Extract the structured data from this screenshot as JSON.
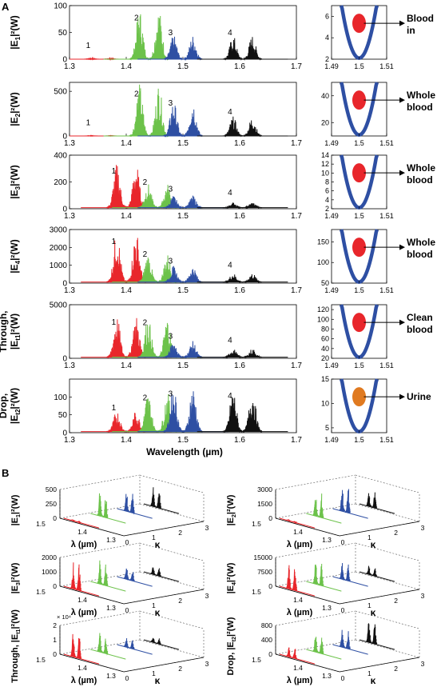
{
  "figure": {
    "panel_a_label": "A",
    "panel_b_label": "B",
    "x_axis_label": "Wavelength (µm)"
  },
  "chart_data": [
    {
      "type": "line",
      "panel": "A",
      "row": 1,
      "ylabel_main": "|E",
      "ylabel_sub": "1",
      "ylabel_rest": "|²(W)",
      "xlim": [
        1.3,
        1.7
      ],
      "ylim": [
        0,
        100
      ],
      "xticks": [
        "1.3",
        "1.4",
        "1.5",
        "1.6",
        "1.7"
      ],
      "yticks": [
        "0",
        "50",
        "100"
      ],
      "peaks": [
        {
          "label": "1",
          "color": "#e8262b",
          "center": 1.355,
          "amp": 2
        },
        {
          "label": "2",
          "color": "#6cc24a",
          "center": 1.44,
          "amp": 95
        },
        {
          "label": "3",
          "color": "#2e4fa3",
          "center": 1.5,
          "amp": 45
        },
        {
          "label": "4",
          "color": "#111111",
          "center": 1.605,
          "amp": 45
        }
      ],
      "inset": {
        "xlim": [
          1.49,
          1.51
        ],
        "ylim": [
          2,
          7
        ],
        "xticks": [
          "1.49",
          "1.5",
          "1.51"
        ],
        "yticks": [
          "2",
          "4",
          "6"
        ],
        "marker_color": "#e8262b",
        "annotation": "Blood in"
      }
    },
    {
      "type": "line",
      "panel": "A",
      "row": 2,
      "ylabel_main": "|E",
      "ylabel_sub": "2",
      "ylabel_rest": "|²(W)",
      "xlim": [
        1.3,
        1.7
      ],
      "ylim": [
        0,
        600
      ],
      "xticks": [
        "1.3",
        "1.4",
        "1.5",
        "1.6",
        "1.7"
      ],
      "yticks": [
        "0",
        "500"
      ],
      "peaks": [
        {
          "label": "1",
          "color": "#e8262b",
          "center": 1.355,
          "amp": 5
        },
        {
          "label": "2",
          "color": "#6cc24a",
          "center": 1.44,
          "amp": 590
        },
        {
          "label": "3",
          "color": "#2e4fa3",
          "center": 1.5,
          "amp": 400
        },
        {
          "label": "4",
          "color": "#111111",
          "center": 1.605,
          "amp": 220
        }
      ],
      "inset": {
        "xlim": [
          1.49,
          1.51
        ],
        "ylim": [
          10,
          50
        ],
        "xticks": [
          "1.49",
          "1.5",
          "1.51"
        ],
        "yticks": [
          "20",
          "40"
        ],
        "marker_color": "#e8262b",
        "annotation": "Whole blood"
      }
    },
    {
      "type": "line",
      "panel": "A",
      "row": 3,
      "ylabel_main": "|E",
      "ylabel_sub": "3",
      "ylabel_rest": "|²(W)",
      "xlim": [
        1.3,
        1.7
      ],
      "ylim": [
        0,
        400
      ],
      "xticks": [
        "1.3",
        "1.4",
        "1.5",
        "1.6",
        "1.7"
      ],
      "yticks": [
        "0",
        "200",
        "400"
      ],
      "peaks": [
        {
          "label": "1",
          "color": "#e8262b",
          "center": 1.4,
          "amp": 330
        },
        {
          "label": "2",
          "color": "#6cc24a",
          "center": 1.455,
          "amp": 180
        },
        {
          "label": "3",
          "color": "#2e4fa3",
          "center": 1.5,
          "amp": 90
        },
        {
          "label": "4",
          "color": "#111111",
          "center": 1.605,
          "amp": 40
        }
      ],
      "inset": {
        "xlim": [
          1.49,
          1.51
        ],
        "ylim": [
          2,
          14
        ],
        "xticks": [
          "1.49",
          "1.5",
          "1.51"
        ],
        "yticks": [
          "2",
          "4",
          "6",
          "8",
          "10",
          "12",
          "14"
        ],
        "marker_color": "#e8262b",
        "annotation": "Whole blood"
      }
    },
    {
      "type": "line",
      "panel": "A",
      "row": 4,
      "ylabel_main": "|E",
      "ylabel_sub": "4",
      "ylabel_rest": "|²(W)",
      "xlim": [
        1.3,
        1.7
      ],
      "ylim": [
        0,
        3000
      ],
      "xticks": [
        "1.3",
        "1.4",
        "1.5",
        "1.6",
        "1.7"
      ],
      "yticks": [
        "0",
        "1000",
        "2000",
        "3000"
      ],
      "peaks": [
        {
          "label": "1",
          "color": "#e8262b",
          "center": 1.4,
          "amp": 2900
        },
        {
          "label": "2",
          "color": "#6cc24a",
          "center": 1.455,
          "amp": 1600
        },
        {
          "label": "3",
          "color": "#2e4fa3",
          "center": 1.5,
          "amp": 900
        },
        {
          "label": "4",
          "color": "#111111",
          "center": 1.605,
          "amp": 500
        }
      ],
      "inset": {
        "xlim": [
          1.49,
          1.51
        ],
        "ylim": [
          50,
          180
        ],
        "xticks": [
          "1.49",
          "1.5",
          "1.51"
        ],
        "yticks": [
          "50",
          "100",
          "150"
        ],
        "marker_color": "#e8262b",
        "annotation": "Whole blood"
      }
    },
    {
      "type": "line",
      "panel": "A",
      "row": 5,
      "ylabel_top": "Through,",
      "ylabel_main": "|E",
      "ylabel_sub": "t1",
      "ylabel_rest": "|²(W)",
      "xlim": [
        1.3,
        1.7
      ],
      "ylim": [
        0,
        5000
      ],
      "xticks": [
        "1.3",
        "1.4",
        "1.5",
        "1.6",
        "1.7"
      ],
      "yticks": [
        "0",
        "5000"
      ],
      "peaks": [
        {
          "label": "1",
          "color": "#e8262b",
          "center": 1.4,
          "amp": 3900
        },
        {
          "label": "2",
          "color": "#6cc24a",
          "center": 1.455,
          "amp": 3800
        },
        {
          "label": "3",
          "color": "#2e4fa3",
          "center": 1.5,
          "amp": 1500
        },
        {
          "label": "4",
          "color": "#111111",
          "center": 1.605,
          "amp": 800
        }
      ],
      "inset": {
        "xlim": [
          1.49,
          1.51
        ],
        "ylim": [
          20,
          130
        ],
        "xticks": [
          "1.49",
          "1.5",
          "1.51"
        ],
        "yticks": [
          "20",
          "40",
          "60",
          "80",
          "100",
          "120"
        ],
        "marker_color": "#e8262b",
        "annotation": "Clean blood"
      }
    },
    {
      "type": "line",
      "panel": "A",
      "row": 6,
      "ylabel_top": "Drop,",
      "ylabel_main": "|E",
      "ylabel_sub": "t2",
      "ylabel_rest": "|²(W)",
      "xlim": [
        1.3,
        1.7
      ],
      "ylim": [
        0,
        150
      ],
      "xticks": [
        "1.3",
        "1.4",
        "1.5",
        "1.6",
        "1.7"
      ],
      "yticks": [
        "0",
        "50",
        "100"
      ],
      "peaks": [
        {
          "label": "1",
          "color": "#e8262b",
          "center": 1.4,
          "amp": 60
        },
        {
          "label": "2",
          "color": "#6cc24a",
          "center": 1.455,
          "amp": 110
        },
        {
          "label": "3",
          "color": "#2e4fa3",
          "center": 1.5,
          "amp": 130
        },
        {
          "label": "4",
          "color": "#111111",
          "center": 1.605,
          "amp": 120
        }
      ],
      "inset": {
        "xlim": [
          1.49,
          1.51
        ],
        "ylim": [
          4,
          15
        ],
        "xticks": [
          "1.49",
          "1.5",
          "1.51"
        ],
        "yticks": [
          "5",
          "10",
          "15"
        ],
        "marker_color": "#e07a20",
        "annotation": "Urine"
      }
    },
    {
      "type": "line",
      "panel": "B",
      "position": "top-left",
      "ylabel_main": "|E",
      "ylabel_sub": "1",
      "ylabel_rest": "|²(W)",
      "zticks": [
        "0",
        "250",
        "500"
      ],
      "zlim": [
        0,
        500
      ],
      "lambda_ticks": [
        "1.5",
        "1.4",
        "1.3"
      ],
      "kappa_ticks": [
        "0",
        "1",
        "2",
        "3"
      ],
      "lambda_label": "λ (µm)",
      "kappa_label": "κ",
      "exponent": "",
      "series": [
        {
          "color": "#e8262b",
          "kappa": 0,
          "amp": 0.05
        },
        {
          "color": "#6cc24a",
          "kappa": 1,
          "amp": 1.0
        },
        {
          "color": "#2e4fa3",
          "kappa": 2,
          "amp": 0.8
        },
        {
          "color": "#111111",
          "kappa": 3,
          "amp": 0.7
        }
      ]
    },
    {
      "type": "line",
      "panel": "B",
      "position": "top-right",
      "ylabel_main": "|E",
      "ylabel_sub": "2",
      "ylabel_rest": "|²(W)",
      "zticks": [
        "0",
        "1500",
        "3000"
      ],
      "zlim": [
        0,
        3000
      ],
      "lambda_ticks": [
        "1.5",
        "1.4",
        "1.3"
      ],
      "kappa_ticks": [
        "0",
        "1",
        "2",
        "3"
      ],
      "lambda_label": "λ (µm)",
      "kappa_label": "κ",
      "exponent": "",
      "series": [
        {
          "color": "#e8262b",
          "kappa": 0,
          "amp": 0.05
        },
        {
          "color": "#6cc24a",
          "kappa": 1,
          "amp": 0.9
        },
        {
          "color": "#2e4fa3",
          "kappa": 2,
          "amp": 1.0
        },
        {
          "color": "#111111",
          "kappa": 3,
          "amp": 0.6
        }
      ]
    },
    {
      "type": "line",
      "panel": "B",
      "position": "middle-left",
      "ylabel_main": "|E",
      "ylabel_sub": "3",
      "ylabel_rest": "|²(W)",
      "zticks": [
        "0",
        "1000",
        "2000"
      ],
      "zlim": [
        0,
        2000
      ],
      "lambda_ticks": [
        "1.5",
        "1.4",
        "1.3"
      ],
      "kappa_ticks": [
        "0",
        "1",
        "2",
        "3"
      ],
      "lambda_label": "λ (µm)",
      "kappa_label": "κ",
      "exponent": "",
      "series": [
        {
          "color": "#e8262b",
          "kappa": 0,
          "amp": 1.0
        },
        {
          "color": "#6cc24a",
          "kappa": 1,
          "amp": 0.9
        },
        {
          "color": "#2e4fa3",
          "kappa": 2,
          "amp": 0.5
        },
        {
          "color": "#111111",
          "kappa": 3,
          "amp": 0.3
        }
      ]
    },
    {
      "type": "line",
      "panel": "B",
      "position": "middle-right",
      "ylabel_main": "|E",
      "ylabel_sub": "4",
      "ylabel_rest": "|²(W)",
      "zticks": [
        "0",
        "7500",
        "15000"
      ],
      "zlim": [
        0,
        15000
      ],
      "lambda_ticks": [
        "1.5",
        "1.4",
        "1.3"
      ],
      "kappa_ticks": [
        "0",
        "1",
        "2",
        "3"
      ],
      "lambda_label": "λ (µm)",
      "kappa_label": "κ",
      "exponent": "",
      "series": [
        {
          "color": "#e8262b",
          "kappa": 0,
          "amp": 1.0
        },
        {
          "color": "#6cc24a",
          "kappa": 1,
          "amp": 0.9
        },
        {
          "color": "#2e4fa3",
          "kappa": 2,
          "amp": 0.6
        },
        {
          "color": "#111111",
          "kappa": 3,
          "amp": 0.35
        }
      ]
    },
    {
      "type": "line",
      "panel": "B",
      "position": "bottom-left",
      "ylabel_main": "Through, |E",
      "ylabel_sub": "t1",
      "ylabel_rest": "|²(W)",
      "zticks": [
        "0",
        "1",
        "2"
      ],
      "zlim": [
        0,
        2
      ],
      "lambda_ticks": [
        "1.5",
        "1.4",
        "1.3"
      ],
      "kappa_ticks": [
        "0",
        "1",
        "2",
        "3"
      ],
      "lambda_label": "λ (µm)",
      "kappa_label": "κ",
      "exponent": "× 10⁴",
      "series": [
        {
          "color": "#e8262b",
          "kappa": 0,
          "amp": 1.0
        },
        {
          "color": "#6cc24a",
          "kappa": 1,
          "amp": 0.8
        },
        {
          "color": "#2e4fa3",
          "kappa": 2,
          "amp": 0.35
        },
        {
          "color": "#111111",
          "kappa": 3,
          "amp": 0.2
        }
      ]
    },
    {
      "type": "line",
      "panel": "B",
      "position": "bottom-right",
      "ylabel_main": "Drop, |E",
      "ylabel_sub": "t2",
      "ylabel_rest": "|²(W)",
      "zticks": [
        "0",
        "400",
        "800"
      ],
      "zlim": [
        0,
        800
      ],
      "lambda_ticks": [
        "1.5",
        "1.4",
        "1.3"
      ],
      "kappa_ticks": [
        "0",
        "1",
        "2",
        "3"
      ],
      "lambda_label": "λ (µm)",
      "kappa_label": "κ",
      "exponent": "",
      "series": [
        {
          "color": "#e8262b",
          "kappa": 0,
          "amp": 0.4
        },
        {
          "color": "#6cc24a",
          "kappa": 1,
          "amp": 0.8
        },
        {
          "color": "#2e4fa3",
          "kappa": 2,
          "amp": 0.7
        },
        {
          "color": "#111111",
          "kappa": 3,
          "amp": 0.9
        }
      ]
    }
  ]
}
